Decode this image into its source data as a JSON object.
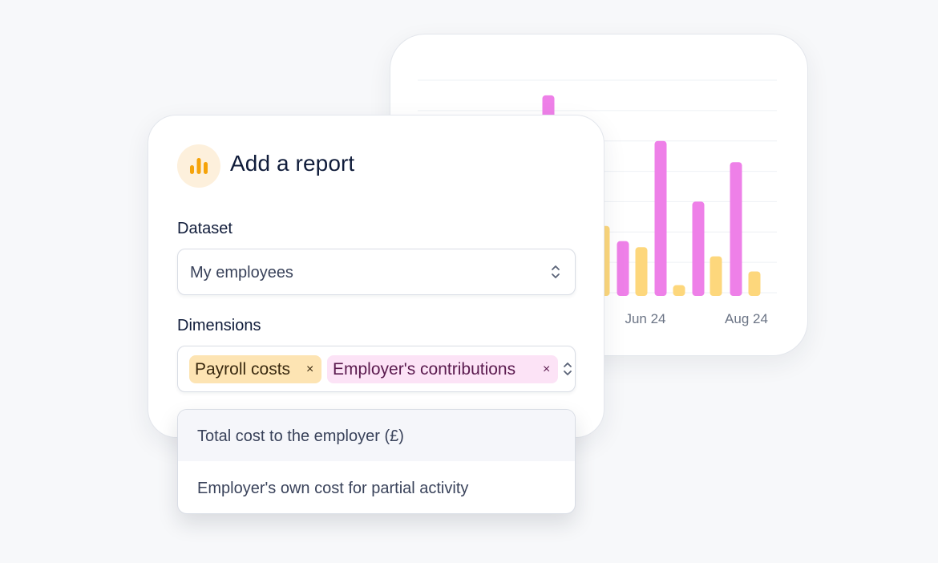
{
  "report": {
    "title": "Add a report",
    "icon": "bar-chart-icon",
    "dataset_label": "Dataset",
    "dataset_value": "My employees",
    "dimensions_label": "Dimensions",
    "tags": [
      {
        "label": "Payroll costs",
        "remove": "×",
        "color": "#fde4b3"
      },
      {
        "label": "Employer's contributions",
        "remove": "×",
        "color": "#fce3f6"
      }
    ]
  },
  "dropdown": {
    "options": [
      {
        "label": "Total cost to the employer (£)",
        "highlighted": true
      },
      {
        "label": "Employer's own cost for partial activity",
        "highlighted": false
      }
    ]
  },
  "chart_data": {
    "type": "bar",
    "title": "",
    "xlabel": "",
    "ylabel": "",
    "ylim": [
      0,
      7
    ],
    "grid": true,
    "x_ticks": [
      "Jun 24",
      "Aug 24"
    ],
    "colors": {
      "pink": "#ee80e8",
      "yellow": "#fdd77c"
    },
    "series_visible_bars": [
      {
        "series": "pink",
        "values": [
          6.5
        ]
      },
      {
        "series": "yellow",
        "values": [
          2.2
        ]
      },
      {
        "series": "pink",
        "values": [
          1.7
        ]
      },
      {
        "series": "yellow",
        "values": [
          1.5
        ]
      },
      {
        "series": "pink",
        "values": [
          5.0
        ]
      },
      {
        "series": "yellow",
        "values": [
          0.25
        ]
      },
      {
        "series": "pink",
        "values": [
          3.0
        ]
      },
      {
        "series": "yellow",
        "values": [
          1.2
        ]
      },
      {
        "series": "pink",
        "values": [
          4.3
        ]
      },
      {
        "series": "yellow",
        "values": [
          0.7
        ]
      }
    ]
  }
}
